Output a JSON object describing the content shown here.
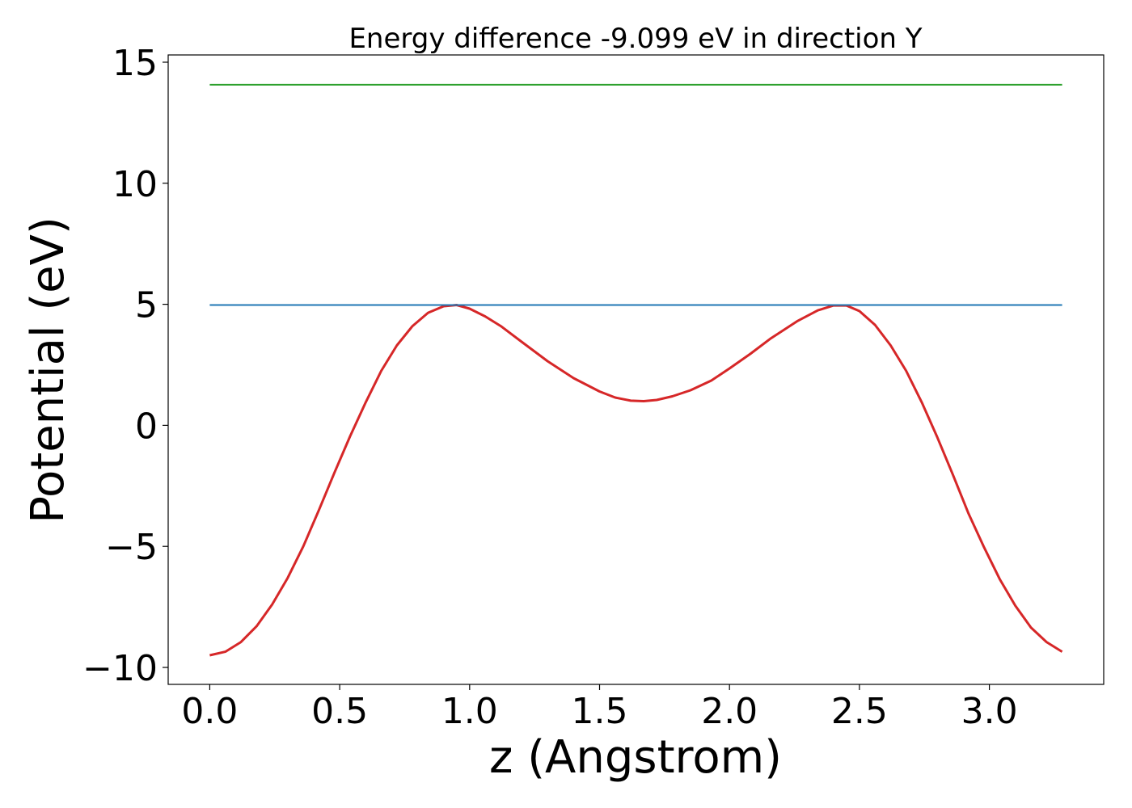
{
  "chart_data": {
    "type": "line",
    "title": "Energy difference -9.099 eV in direction Y",
    "xlabel": "z (Angstrom)",
    "ylabel": "Potential (eV)",
    "xlim": [
      -0.16,
      3.44
    ],
    "ylim": [
      -10.7,
      15.3
    ],
    "xticks": [
      0.0,
      0.5,
      1.0,
      1.5,
      2.0,
      2.5,
      3.0
    ],
    "xtick_labels": [
      "0.0",
      "0.5",
      "1.0",
      "1.5",
      "2.0",
      "2.5",
      "3.0"
    ],
    "yticks": [
      -10,
      -5,
      0,
      5,
      10,
      15
    ],
    "ytick_labels": [
      "−10",
      "−5",
      "0",
      "5",
      "10",
      "15"
    ],
    "grid": false,
    "legend": "none",
    "series": [
      {
        "color": "#d62728",
        "x": [
          0.0,
          0.06,
          0.12,
          0.18,
          0.24,
          0.3,
          0.36,
          0.42,
          0.48,
          0.54,
          0.6,
          0.66,
          0.72,
          0.78,
          0.84,
          0.9,
          0.95,
          1.0,
          1.06,
          1.12,
          1.2,
          1.3,
          1.4,
          1.5,
          1.56,
          1.62,
          1.67,
          1.72,
          1.78,
          1.85,
          1.93,
          2.0,
          2.08,
          2.16,
          2.26,
          2.34,
          2.4,
          2.45,
          2.5,
          2.56,
          2.62,
          2.68,
          2.74,
          2.8,
          2.86,
          2.92,
          2.98,
          3.04,
          3.1,
          3.16,
          3.22,
          3.28
        ],
        "values": [
          -9.5,
          -9.35,
          -8.95,
          -8.3,
          -7.4,
          -6.3,
          -5.0,
          -3.5,
          -1.95,
          -0.45,
          0.95,
          2.25,
          3.3,
          4.1,
          4.65,
          4.92,
          4.97,
          4.82,
          4.5,
          4.1,
          3.45,
          2.65,
          1.95,
          1.4,
          1.15,
          1.02,
          1.0,
          1.05,
          1.2,
          1.45,
          1.85,
          2.35,
          2.95,
          3.6,
          4.3,
          4.75,
          4.95,
          4.95,
          4.72,
          4.15,
          3.3,
          2.25,
          0.95,
          -0.5,
          -2.05,
          -3.65,
          -5.05,
          -6.35,
          -7.45,
          -8.35,
          -8.95,
          -9.35
        ]
      },
      {
        "color": "#1f77b4",
        "x": [
          0.0,
          3.28
        ],
        "values": [
          4.97,
          4.97
        ]
      },
      {
        "color": "#2ca02c",
        "x": [
          0.0,
          3.28
        ],
        "values": [
          14.07,
          14.07
        ]
      }
    ]
  }
}
